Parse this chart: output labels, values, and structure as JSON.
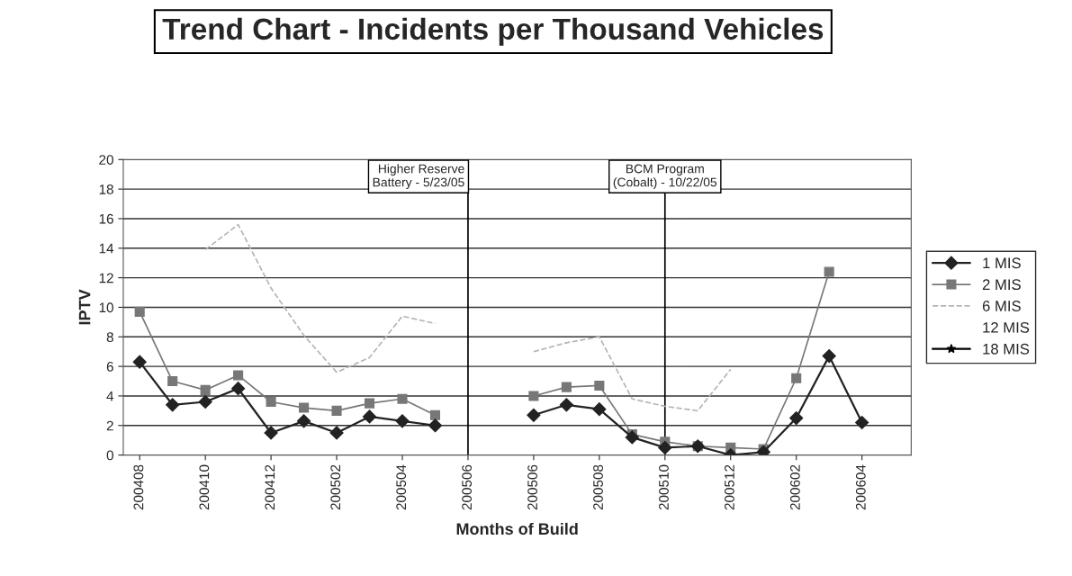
{
  "chart_data": {
    "type": "line",
    "title": "Trend Chart - Incidents per Thousand Vehicles",
    "xlabel": "Months of Build",
    "ylabel": "IPTV",
    "categories": [
      "200408",
      null,
      "200410",
      null,
      "200412",
      null,
      "200502",
      null,
      "200504",
      null,
      "200506",
      null,
      "200506",
      null,
      "200508",
      null,
      "200510",
      null,
      "200512",
      null,
      "200602",
      null,
      "200604",
      null
    ],
    "series": [
      {
        "name": "1 MIS",
        "color": "#222222",
        "marker": "diamond",
        "line_style": "solid",
        "values": [
          6.3,
          3.4,
          3.6,
          4.5,
          1.5,
          2.3,
          1.5,
          2.6,
          2.3,
          2.0,
          null,
          null,
          2.7,
          3.4,
          3.1,
          1.2,
          0.5,
          0.6,
          0.0,
          0.2,
          2.5,
          6.7,
          2.2,
          null
        ]
      },
      {
        "name": "2 MIS",
        "color": "#777777",
        "marker": "square",
        "line_style": "solid",
        "values": [
          9.7,
          5.0,
          4.4,
          5.4,
          3.6,
          3.2,
          3.0,
          3.5,
          3.8,
          2.7,
          null,
          null,
          4.0,
          4.6,
          4.7,
          1.4,
          0.9,
          0.6,
          0.5,
          0.4,
          5.2,
          12.4,
          null,
          null
        ]
      },
      {
        "name": "6 MIS",
        "color": "#b5b5b5",
        "marker": "none",
        "line_style": "dashed",
        "values": [
          null,
          null,
          13.9,
          15.6,
          11.3,
          8.1,
          5.6,
          6.6,
          9.4,
          8.9,
          null,
          null,
          7.0,
          7.6,
          8.0,
          3.8,
          3.3,
          3.0,
          5.8,
          null,
          null,
          null,
          null,
          null
        ]
      },
      {
        "name": "12 MIS",
        "marker": "none",
        "line_style": "solid",
        "values": [
          null,
          null,
          null,
          null,
          null,
          null,
          null,
          null,
          null,
          null,
          null,
          null,
          null,
          null,
          null,
          null,
          null,
          null,
          null,
          null,
          null,
          null,
          null,
          null
        ]
      },
      {
        "name": "18 MIS",
        "color": "#000000",
        "marker": "star",
        "line_style": "solid",
        "values": [
          null,
          null,
          null,
          null,
          null,
          null,
          null,
          null,
          null,
          null,
          null,
          null,
          null,
          null,
          null,
          null,
          null,
          null,
          null,
          null,
          null,
          null,
          null,
          null
        ]
      }
    ],
    "ref_lines": [
      {
        "axis": "x",
        "value": "200506",
        "label": "Higher Reserve\nBattery - 5/23/05",
        "color": "#000000"
      },
      {
        "axis": "x",
        "value": "200510",
        "label": "BCM Program\n(Cobalt) - 10/22/05",
        "color": "#000000"
      }
    ],
    "ylim": [
      0,
      20
    ],
    "yticks": [
      0,
      2,
      4,
      6,
      8,
      10,
      12,
      14,
      16,
      18,
      20
    ],
    "grid": "y",
    "legend": "right"
  }
}
